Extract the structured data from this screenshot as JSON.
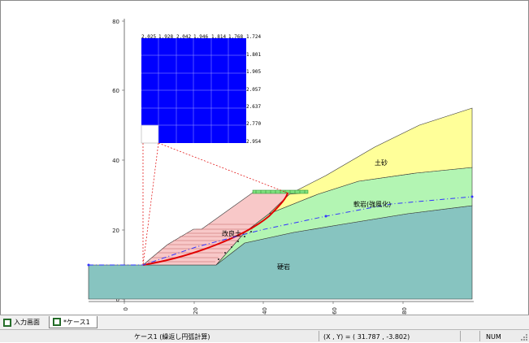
{
  "y_axis_labels": [
    "80",
    "60",
    "40",
    "20",
    "0"
  ],
  "x_axis_labels": [
    "0",
    "20",
    "40",
    "60",
    "80"
  ],
  "grid_top_values": [
    "2.025",
    "1.928",
    "2.042",
    "1.946",
    "1.814",
    "1.768",
    "1.724"
  ],
  "grid_right_values": [
    "1.801",
    "1.905",
    "2.057",
    "2.637",
    "2.770",
    "2.954"
  ],
  "layers": {
    "soil": "土砂",
    "soft_rock": "軟岩(強風化)",
    "improved": "改良土",
    "hard_rock": "硬岩"
  },
  "tabs": [
    {
      "label": "入力画面"
    },
    {
      "label": "*ケース1"
    }
  ],
  "status": {
    "case": "ケース1 (繰返し円弧計算)",
    "coords": "(X , Y) = ( 31.787 , -3.802)",
    "mode": "NUM"
  },
  "colors": {
    "soil": "#ffff99",
    "soft_rock": "#b3f5b3",
    "hard_rock": "#87c4c0",
    "improved": "#f8c8c8",
    "grid": "#0000ff",
    "slip_circle": "#e00000",
    "water_line": "#3333ff"
  }
}
